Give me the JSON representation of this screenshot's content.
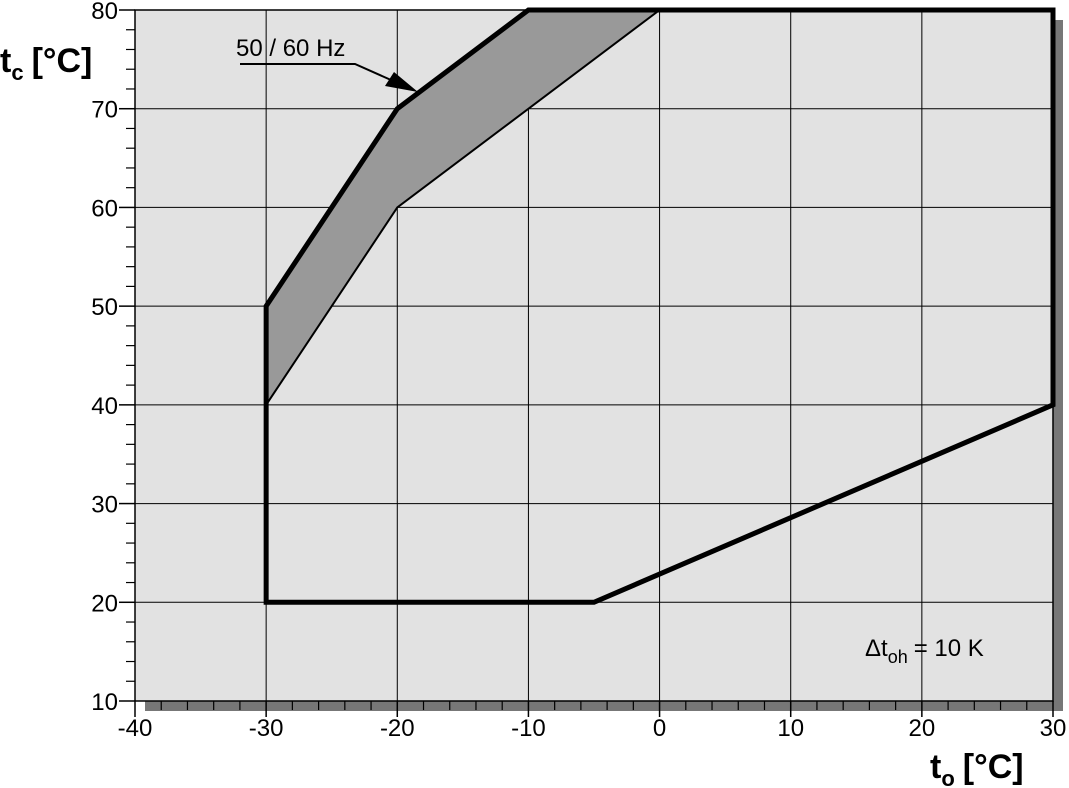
{
  "chart_data": {
    "type": "envelope",
    "xlim": [
      -40,
      30
    ],
    "ylim": [
      10,
      80
    ],
    "xticks": [
      -40,
      -30,
      -20,
      -10,
      0,
      10,
      20,
      30
    ],
    "yticks": [
      10,
      20,
      30,
      40,
      50,
      60,
      70,
      80
    ],
    "xminorticks": [
      -38,
      -36,
      -34,
      -32,
      -28,
      -26,
      -24,
      -22,
      -18,
      -16,
      -14,
      -12,
      -8,
      -6,
      -4,
      -2,
      2,
      4,
      6,
      8,
      12,
      14,
      16,
      18,
      22,
      24,
      26,
      28
    ],
    "yminorticks": [
      12,
      14,
      16,
      18,
      22,
      24,
      26,
      28,
      32,
      34,
      36,
      38,
      42,
      44,
      46,
      48,
      52,
      54,
      56,
      58,
      62,
      64,
      66,
      68,
      72,
      74,
      76,
      78
    ],
    "grid": true,
    "xlabel": {
      "symbol": "t",
      "subscript": "o",
      "unit": "[°C]"
    },
    "ylabel": {
      "symbol": "t",
      "subscript": "c",
      "unit": "[°C]"
    },
    "series": [
      {
        "x": [
          -30,
          -30,
          -20,
          -10,
          30,
          30,
          -5
        ],
        "values": [
          20,
          50,
          70,
          80,
          80,
          40,
          20
        ],
        "color": "#000000"
      },
      {
        "x": [
          -30,
          -20,
          -10,
          0,
          -20,
          -30
        ],
        "values": [
          50,
          70,
          80,
          80,
          60,
          40
        ],
        "color": "#999999"
      }
    ],
    "annotations": [
      {
        "text": "50 / 60 Hz"
      },
      {
        "symbol": "Δt",
        "subscript": "oh",
        "text": "= 10 K"
      }
    ]
  }
}
